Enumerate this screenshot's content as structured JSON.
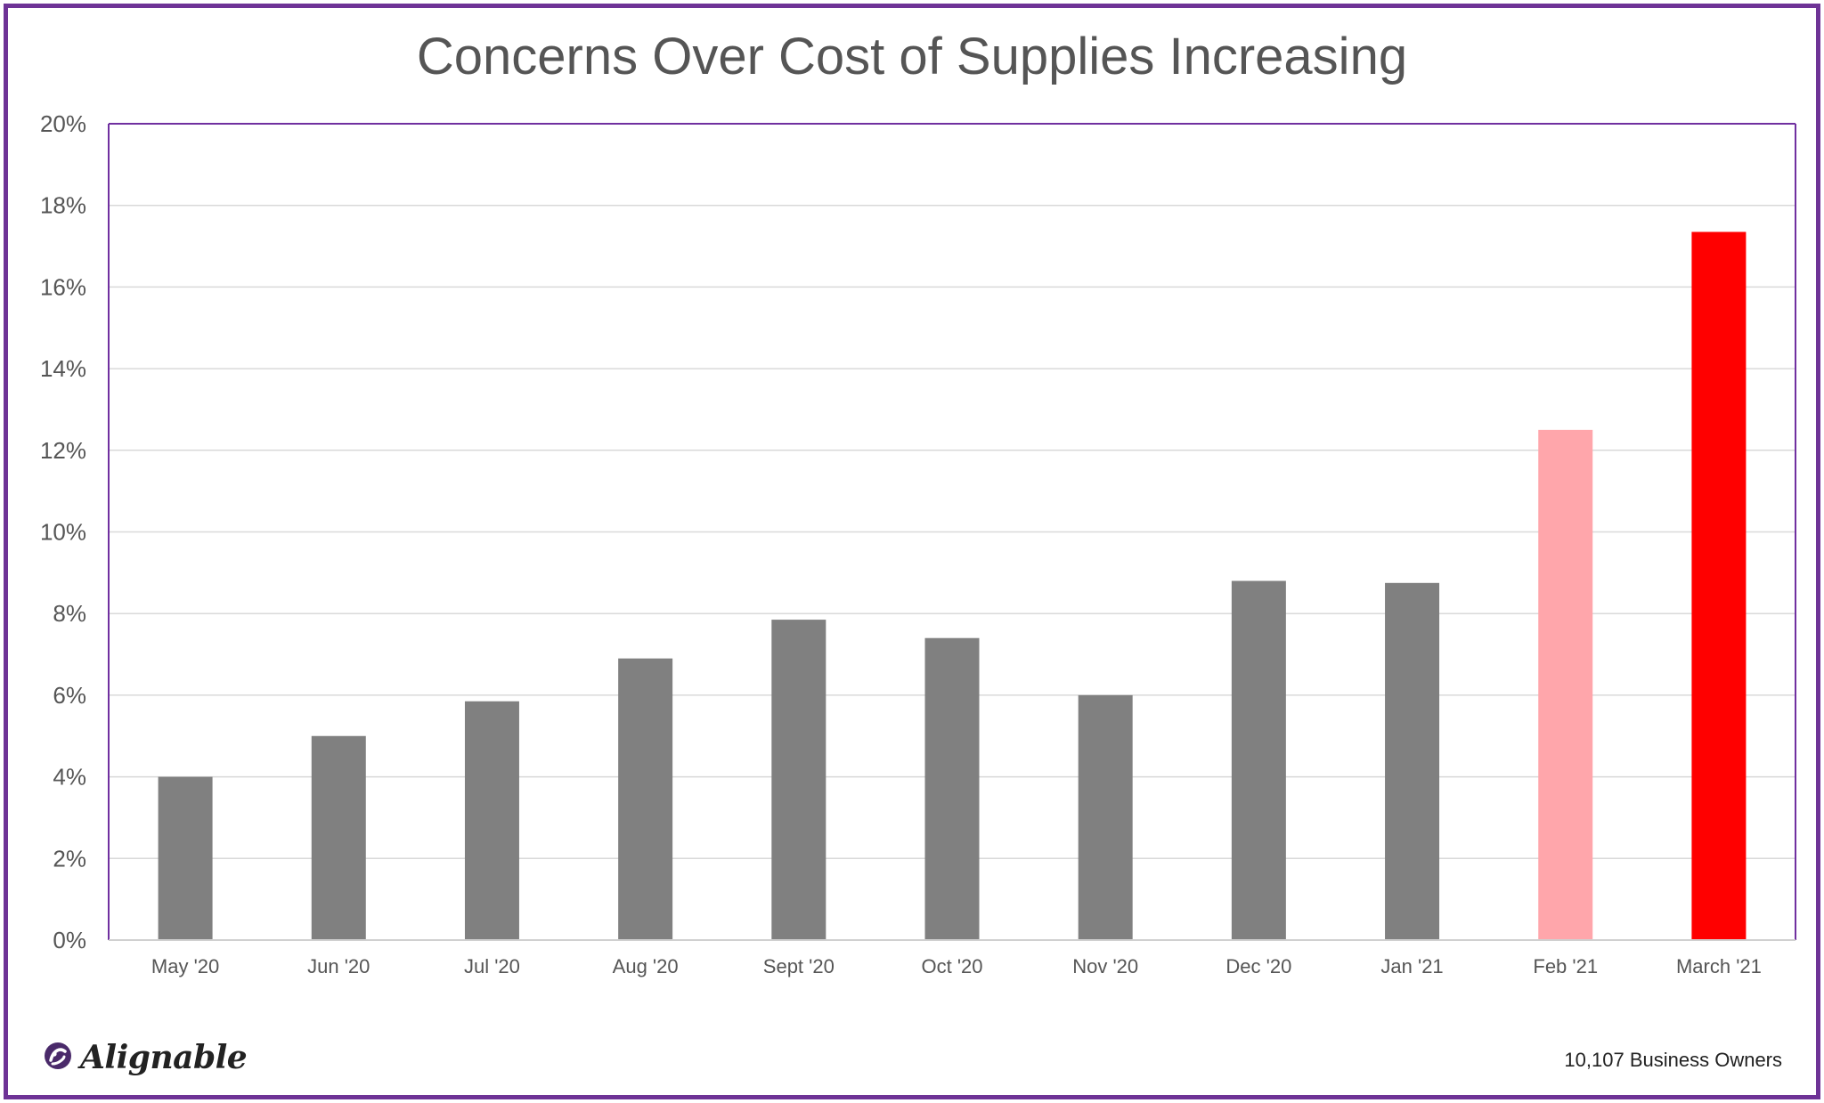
{
  "chart_data": {
    "type": "bar",
    "title": "Concerns Over Cost of Supplies Increasing",
    "xlabel": "",
    "ylabel": "",
    "categories": [
      "May '20",
      "Jun '20",
      "Jul '20",
      "Aug '20",
      "Sept '20",
      "Oct '20",
      "Nov '20",
      "Dec '20",
      "Jan '21",
      "Feb '21",
      "March '21"
    ],
    "values": [
      4.0,
      5.0,
      5.85,
      6.9,
      7.85,
      7.4,
      6.0,
      8.8,
      8.75,
      12.5,
      17.35
    ],
    "bar_colors": [
      "#808080",
      "#808080",
      "#808080",
      "#808080",
      "#808080",
      "#808080",
      "#808080",
      "#808080",
      "#808080",
      "#ffa6ab",
      "#ff0000"
    ],
    "ylim": [
      0,
      20
    ],
    "yticks": [
      0,
      2,
      4,
      6,
      8,
      10,
      12,
      14,
      16,
      18,
      20
    ],
    "ytick_labels": [
      "0%",
      "2%",
      "4%",
      "6%",
      "8%",
      "10%",
      "12%",
      "14%",
      "16%",
      "18%",
      "20%"
    ],
    "grid": true,
    "plot_border_color": "#7030a0",
    "gridline_color": "#d9d9d9"
  },
  "branding": {
    "logo_text": "Alignable",
    "logo_icon": "alignable-logo-icon",
    "accent_color": "#6e3396"
  },
  "footer": {
    "note": "10,107 Business Owners"
  }
}
